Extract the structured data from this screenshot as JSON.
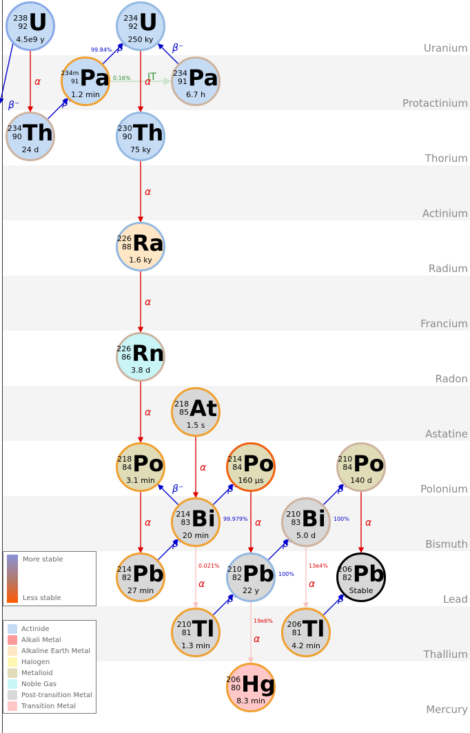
{
  "rows": [
    "Uranium",
    "Protactinium",
    "Thorium",
    "Actinium",
    "Radium",
    "Francium",
    "Radon",
    "Astatine",
    "Polonium",
    "Bismuth",
    "Lead",
    "Thallium",
    "Mercury"
  ],
  "colors": {
    "actinide": "#c6dcf5",
    "alkaline_earth": "#ffe7c6",
    "noble_gas": "#c9f5f7",
    "metalloid": "#dfdcb7",
    "post_transition": "#d8d8d8",
    "transition": "#ffc7c7",
    "stable_ring": "#000000",
    "alpha": "#e00000",
    "beta": "#0000cc"
  },
  "nuclides": [
    {
      "id": "u238",
      "mass": "238",
      "z": "92",
      "symbol": "U",
      "half_life": "4.5e9 y",
      "category": "actinide",
      "stability": "stable-ish"
    },
    {
      "id": "u234",
      "mass": "234",
      "z": "92",
      "symbol": "U",
      "half_life": "250 ky",
      "category": "actinide",
      "stability": "fairly-stable"
    },
    {
      "id": "pa234m",
      "mass": "234m",
      "z": "91",
      "symbol": "Pa",
      "half_life": "1.2 min",
      "category": "actinide",
      "stability": "unstable"
    },
    {
      "id": "pa234",
      "mass": "234",
      "z": "91",
      "symbol": "Pa",
      "half_life": "6.7 h",
      "category": "actinide",
      "stability": "medium"
    },
    {
      "id": "th234",
      "mass": "234",
      "z": "90",
      "symbol": "Th",
      "half_life": "24 d",
      "category": "actinide",
      "stability": "medium"
    },
    {
      "id": "th230",
      "mass": "230",
      "z": "90",
      "symbol": "Th",
      "half_life": "75 ky",
      "category": "actinide",
      "stability": "fairly-stable"
    },
    {
      "id": "ra226",
      "mass": "226",
      "z": "88",
      "symbol": "Ra",
      "half_life": "1.6 ky",
      "category": "alkaline_earth",
      "stability": "fairly-stable"
    },
    {
      "id": "rn222",
      "mass": "226",
      "z": "86",
      "symbol": "Rn",
      "half_life": "3.8 d",
      "category": "noble_gas",
      "stability": "medium"
    },
    {
      "id": "at218",
      "mass": "218",
      "z": "85",
      "symbol": "At",
      "half_life": "1.5 s",
      "category": "post_transition",
      "stability": "unstable"
    },
    {
      "id": "po218",
      "mass": "218",
      "z": "84",
      "symbol": "Po",
      "half_life": "3.1 min",
      "category": "metalloid",
      "stability": "unstable"
    },
    {
      "id": "po214",
      "mass": "214",
      "z": "84",
      "symbol": "Po",
      "half_life": "160 µs",
      "category": "metalloid",
      "stability": "very-unstable"
    },
    {
      "id": "po210",
      "mass": "210",
      "z": "84",
      "symbol": "Po",
      "half_life": "140 d",
      "category": "metalloid",
      "stability": "medium"
    },
    {
      "id": "bi214",
      "mass": "214",
      "z": "83",
      "symbol": "Bi",
      "half_life": "20 min",
      "category": "post_transition",
      "stability": "unstable"
    },
    {
      "id": "bi210",
      "mass": "210",
      "z": "83",
      "symbol": "Bi",
      "half_life": "5.0 d",
      "category": "post_transition",
      "stability": "medium"
    },
    {
      "id": "pb214",
      "mass": "214",
      "z": "82",
      "symbol": "Pb",
      "half_life": "27 min",
      "category": "post_transition",
      "stability": "unstable"
    },
    {
      "id": "pb210",
      "mass": "210",
      "z": "82",
      "symbol": "Pb",
      "half_life": "22 y",
      "category": "post_transition",
      "stability": "fairly-stable"
    },
    {
      "id": "pb206",
      "mass": "206",
      "z": "82",
      "symbol": "Pb",
      "half_life": "Stable",
      "category": "post_transition",
      "stability": "stable"
    },
    {
      "id": "tl210",
      "mass": "210",
      "z": "81",
      "symbol": "Tl",
      "half_life": "1.3 min",
      "category": "post_transition",
      "stability": "unstable"
    },
    {
      "id": "tl206",
      "mass": "206",
      "z": "81",
      "symbol": "Tl",
      "half_life": "4.2 min",
      "category": "post_transition",
      "stability": "unstable"
    },
    {
      "id": "hg206",
      "mass": "206",
      "z": "80",
      "symbol": "Hg",
      "half_life": "8.3 min",
      "category": "transition",
      "stability": "unstable"
    }
  ],
  "decays": [
    {
      "from": "u238",
      "to": "th234",
      "type": "alpha",
      "label": "α"
    },
    {
      "from": "th234",
      "to": "pa234m",
      "type": "beta",
      "label": "β⁻"
    },
    {
      "from": "pa234m",
      "to": "u234",
      "type": "beta",
      "label": "β⁻",
      "branch": "99.84%"
    },
    {
      "from": "pa234m",
      "to": "pa234",
      "type": "it",
      "label": "IT",
      "branch": "0.16%"
    },
    {
      "from": "pa234",
      "to": "u234",
      "type": "beta",
      "label": "β⁻"
    },
    {
      "from": "u234",
      "to": "th230",
      "type": "alpha",
      "label": "α"
    },
    {
      "from": "th230",
      "to": "ra226",
      "type": "alpha",
      "label": "α"
    },
    {
      "from": "ra226",
      "to": "rn222",
      "type": "alpha",
      "label": "α"
    },
    {
      "from": "rn222",
      "to": "po218",
      "type": "alpha",
      "label": "α"
    },
    {
      "from": "po218",
      "to": "pb214",
      "type": "alpha",
      "label": "α"
    },
    {
      "from": "at218",
      "to": "bi214",
      "type": "alpha",
      "label": "α"
    },
    {
      "from": "bi214",
      "to": "po218",
      "type": "beta",
      "label": "β⁻"
    },
    {
      "from": "pb214",
      "to": "bi214",
      "type": "beta",
      "label": "β⁻"
    },
    {
      "from": "bi214",
      "to": "po214",
      "type": "beta",
      "label": "β⁻",
      "branch": "99.979%"
    },
    {
      "from": "bi214",
      "to": "tl210",
      "type": "alpha-faint",
      "label": "α",
      "branch": "0.021%"
    },
    {
      "from": "po214",
      "to": "pb210",
      "type": "alpha",
      "label": "α"
    },
    {
      "from": "tl210",
      "to": "pb210",
      "type": "beta",
      "label": "β⁻"
    },
    {
      "from": "pb210",
      "to": "bi210",
      "type": "beta",
      "label": "β⁻",
      "branch": "100%"
    },
    {
      "from": "pb210",
      "to": "hg206",
      "type": "alpha-faint",
      "label": "α",
      "branch": "19e6%"
    },
    {
      "from": "bi210",
      "to": "po210",
      "type": "beta",
      "label": "β⁻",
      "branch": "100%"
    },
    {
      "from": "bi210",
      "to": "tl206",
      "type": "alpha-faint",
      "label": "α",
      "branch": "13e4%"
    },
    {
      "from": "tl206",
      "to": "pb206",
      "type": "beta",
      "label": "β⁻"
    },
    {
      "from": "po210",
      "to": "pb206",
      "type": "alpha",
      "label": "α"
    },
    {
      "from": "u238",
      "to": "offscreen-left",
      "type": "beta-edge",
      "label": "β⁻"
    }
  ],
  "stability_legend": {
    "top_label": "More stable",
    "bottom_label": "Less stable"
  },
  "category_legend": [
    {
      "key": "actinide",
      "label": "Actinide",
      "color": "#c6dcf5"
    },
    {
      "key": "alkali",
      "label": "Alkali Metal",
      "color": "#ff9a9a"
    },
    {
      "key": "alkaline_earth",
      "label": "Alkaline Earth Metal",
      "color": "#ffe7c6"
    },
    {
      "key": "halogen",
      "label": "Halogen",
      "color": "#fff7b0"
    },
    {
      "key": "metalloid",
      "label": "Metalloid",
      "color": "#dfdcb7"
    },
    {
      "key": "noble_gas",
      "label": "Noble Gas",
      "color": "#c9f5f7"
    },
    {
      "key": "post_transition",
      "label": "Post-transition Metal",
      "color": "#d8d8d8"
    },
    {
      "key": "transition",
      "label": "Transition Metal",
      "color": "#ffc7c7"
    }
  ]
}
